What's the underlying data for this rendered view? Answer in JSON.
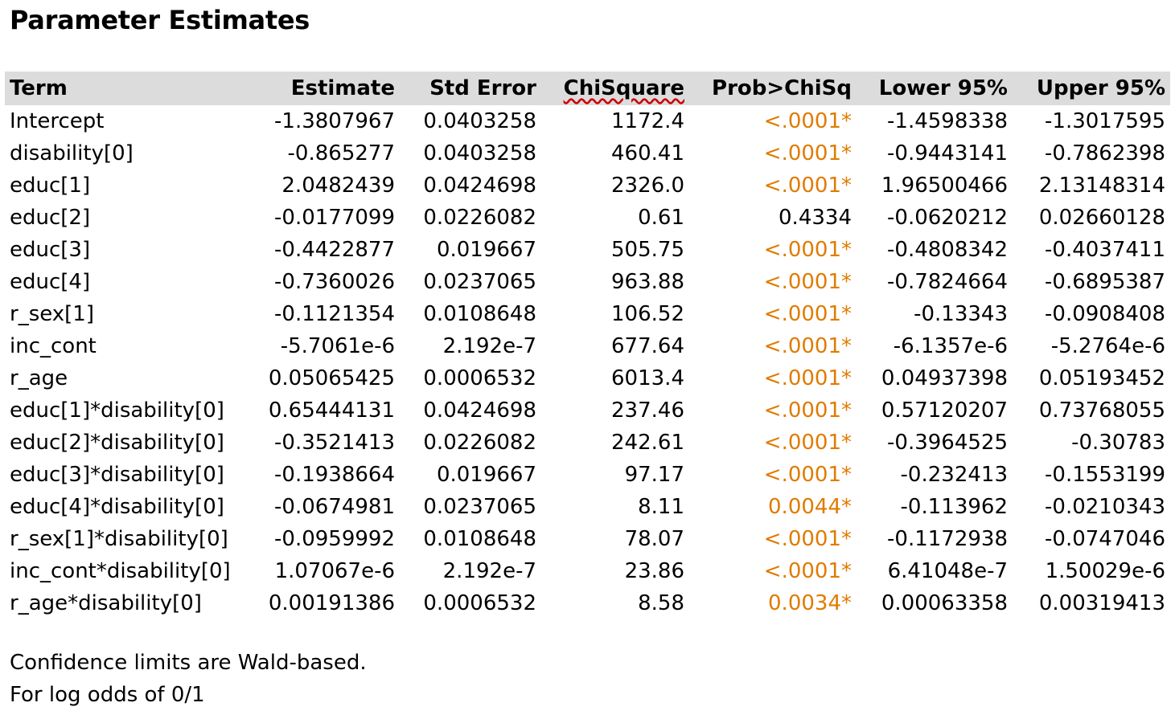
{
  "title": "Parameter Estimates",
  "columns": [
    "Term",
    "Estimate",
    "Std Error",
    "ChiSquare",
    "Prob>ChiSq",
    "Lower 95%",
    "Upper 95%"
  ],
  "rows": [
    {
      "term": "Intercept",
      "estimate": "-1.3807967",
      "std_error": "0.0403258",
      "chisquare": "1172.4",
      "prob": "<.0001*",
      "lower": "-1.4598338",
      "upper": "-1.3017595",
      "significant": true
    },
    {
      "term": "disability[0]",
      "estimate": "-0.865277",
      "std_error": "0.0403258",
      "chisquare": "460.41",
      "prob": "<.0001*",
      "lower": "-0.9443141",
      "upper": "-0.7862398",
      "significant": true
    },
    {
      "term": "educ[1]",
      "estimate": "2.0482439",
      "std_error": "0.0424698",
      "chisquare": "2326.0",
      "prob": "<.0001*",
      "lower": "1.96500466",
      "upper": "2.13148314",
      "significant": true
    },
    {
      "term": "educ[2]",
      "estimate": "-0.0177099",
      "std_error": "0.0226082",
      "chisquare": "0.61",
      "prob": "0.4334",
      "lower": "-0.0620212",
      "upper": "0.02660128",
      "significant": false
    },
    {
      "term": "educ[3]",
      "estimate": "-0.4422877",
      "std_error": "0.019667",
      "chisquare": "505.75",
      "prob": "<.0001*",
      "lower": "-0.4808342",
      "upper": "-0.4037411",
      "significant": true
    },
    {
      "term": "educ[4]",
      "estimate": "-0.7360026",
      "std_error": "0.0237065",
      "chisquare": "963.88",
      "prob": "<.0001*",
      "lower": "-0.7824664",
      "upper": "-0.6895387",
      "significant": true
    },
    {
      "term": "r_sex[1]",
      "estimate": "-0.1121354",
      "std_error": "0.0108648",
      "chisquare": "106.52",
      "prob": "<.0001*",
      "lower": "-0.13343",
      "upper": "-0.0908408",
      "significant": true
    },
    {
      "term": "inc_cont",
      "estimate": "-5.7061e-6",
      "std_error": "2.192e-7",
      "chisquare": "677.64",
      "prob": "<.0001*",
      "lower": "-6.1357e-6",
      "upper": "-5.2764e-6",
      "significant": true
    },
    {
      "term": "r_age",
      "estimate": "0.05065425",
      "std_error": "0.0006532",
      "chisquare": "6013.4",
      "prob": "<.0001*",
      "lower": "0.04937398",
      "upper": "0.05193452",
      "significant": true
    },
    {
      "term": "educ[1]*disability[0]",
      "estimate": "0.65444131",
      "std_error": "0.0424698",
      "chisquare": "237.46",
      "prob": "<.0001*",
      "lower": "0.57120207",
      "upper": "0.73768055",
      "significant": true
    },
    {
      "term": "educ[2]*disability[0]",
      "estimate": "-0.3521413",
      "std_error": "0.0226082",
      "chisquare": "242.61",
      "prob": "<.0001*",
      "lower": "-0.3964525",
      "upper": "-0.30783",
      "significant": true
    },
    {
      "term": "educ[3]*disability[0]",
      "estimate": "-0.1938664",
      "std_error": "0.019667",
      "chisquare": "97.17",
      "prob": "<.0001*",
      "lower": "-0.232413",
      "upper": "-0.1553199",
      "significant": true
    },
    {
      "term": "educ[4]*disability[0]",
      "estimate": "-0.0674981",
      "std_error": "0.0237065",
      "chisquare": "8.11",
      "prob": "0.0044*",
      "lower": "-0.113962",
      "upper": "-0.0210343",
      "significant": true
    },
    {
      "term": "r_sex[1]*disability[0]",
      "estimate": "-0.0959992",
      "std_error": "0.0108648",
      "chisquare": "78.07",
      "prob": "<.0001*",
      "lower": "-0.1172938",
      "upper": "-0.0747046",
      "significant": true
    },
    {
      "term": "inc_cont*disability[0]",
      "estimate": "1.07067e-6",
      "std_error": "2.192e-7",
      "chisquare": "23.86",
      "prob": "<.0001*",
      "lower": "6.41048e-7",
      "upper": "1.50029e-6",
      "significant": true
    },
    {
      "term": "r_age*disability[0]",
      "estimate": "0.00191386",
      "std_error": "0.0006532",
      "chisquare": "8.58",
      "prob": "0.0034*",
      "lower": "0.00063358",
      "upper": "0.00319413",
      "significant": true
    }
  ],
  "notes": [
    "Confidence limits are Wald-based.",
    "For log odds of 0/1"
  ],
  "colors": {
    "significant": "#e07b00",
    "header_bg": "#dcdcdc"
  }
}
